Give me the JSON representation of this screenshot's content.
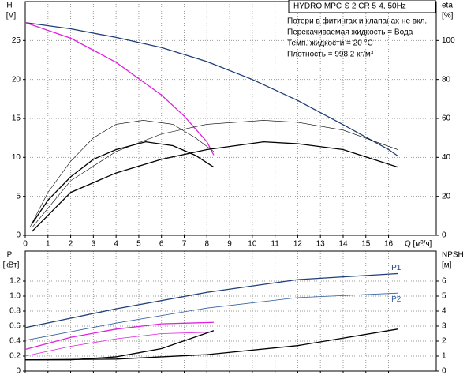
{
  "chart_data": [
    {
      "type": "line",
      "title": "HYDRO MPC-S 2 CR 5-4, 50Hz",
      "annotations": [
        "Потери в фитингах и клапанах не вкл.",
        "Перекачиваемая жидкость = Вода",
        "Темп. жидкости = 20 °C",
        "Плотность = 998.2 кг/м³"
      ],
      "xlabel": "Q [м³/ч]",
      "ylabel": "H",
      "yunit": "[м]",
      "y2label": "eta",
      "y2unit": "[%]",
      "xlim": [
        0,
        18.1
      ],
      "xticks": [
        0,
        1,
        2,
        3,
        4,
        5,
        6,
        7,
        8,
        9,
        10,
        11,
        12,
        13,
        14,
        15,
        16
      ],
      "ylim": [
        0,
        30
      ],
      "yticks": [
        0,
        5,
        10,
        15,
        20,
        25
      ],
      "y2lim": [
        0,
        120
      ],
      "y2ticks": [
        0,
        20,
        40,
        60,
        80,
        100
      ],
      "grid": true,
      "series": [
        {
          "color": "#1f3f7a",
          "width": 1.3,
          "x": [
            0,
            2,
            4,
            6,
            8,
            10,
            12,
            14,
            16,
            16.4
          ],
          "values": [
            27.3,
            26.5,
            25.4,
            24.1,
            22.3,
            20.0,
            17.3,
            14.2,
            11.0,
            10.2
          ]
        },
        {
          "color": "#e020e0",
          "width": 1.3,
          "x": [
            0,
            2,
            4,
            6,
            7,
            8,
            8.3
          ],
          "values": [
            27.3,
            25.3,
            22.2,
            18.0,
            15.3,
            12.0,
            10.3
          ]
        },
        {
          "color": "#000000",
          "width": 0.6,
          "axis": "y2",
          "x": [
            0.2,
            1,
            2,
            3,
            4,
            5.2,
            6.5,
            7.5,
            8.3
          ],
          "values": [
            4,
            22,
            38,
            50,
            57,
            59,
            57,
            50,
            43
          ]
        },
        {
          "color": "#000000",
          "width": 1.3,
          "axis": "y2",
          "x": [
            0.3,
            1,
            2,
            3,
            4,
            5.3,
            6.5,
            7.5,
            8.3
          ],
          "values": [
            6,
            18,
            30,
            39,
            44,
            48,
            46,
            41,
            35
          ]
        },
        {
          "color": "#000000",
          "width": 0.6,
          "axis": "y2",
          "x": [
            0.3,
            2,
            4,
            6,
            8,
            10.5,
            12,
            14,
            16.4
          ],
          "values": [
            4,
            28,
            43,
            52,
            57,
            59,
            58,
            54,
            44
          ]
        },
        {
          "color": "#000000",
          "width": 1.3,
          "axis": "y2",
          "x": [
            0.3,
            2,
            4,
            6,
            8,
            10.5,
            12,
            14,
            16.4
          ],
          "values": [
            2,
            22,
            32,
            39,
            44,
            48,
            47,
            44,
            35
          ]
        }
      ]
    },
    {
      "type": "line",
      "ylabel": "P",
      "yunit": "[кВт]",
      "y2label": "NPSH",
      "y2unit": "[м]",
      "xlim": [
        0,
        18.1
      ],
      "xticks": [
        0,
        1,
        2,
        3,
        4,
        5,
        6,
        7,
        8,
        9,
        10,
        11,
        12,
        13,
        14,
        15,
        16
      ],
      "ylim": [
        0,
        1.6
      ],
      "yticks": [
        0,
        0.2,
        0.4,
        0.6,
        0.8,
        {
          "value": 1,
          "label": "1.0"
        },
        1.2
      ],
      "y2lim": [
        0,
        8
      ],
      "y2ticks": [
        0,
        1,
        2,
        3,
        4,
        5,
        6
      ],
      "grid": true,
      "series": [
        {
          "name": "P1",
          "color": "#1f3f7a",
          "width": 1.3,
          "x": [
            0,
            4,
            8,
            12,
            16.4
          ],
          "values": [
            0.58,
            0.83,
            1.05,
            1.22,
            1.3
          ]
        },
        {
          "name": "P2",
          "color": "#2f5f9f",
          "width": 0.8,
          "x": [
            0,
            4,
            8,
            12,
            16.4
          ],
          "values": [
            0.41,
            0.64,
            0.84,
            0.98,
            1.04
          ]
        },
        {
          "color": "#e020e0",
          "width": 1.3,
          "x": [
            0,
            2,
            4,
            6,
            8.3
          ],
          "values": [
            0.29,
            0.45,
            0.56,
            0.63,
            0.65
          ]
        },
        {
          "color": "#e020e0",
          "width": 0.8,
          "x": [
            0,
            2,
            4,
            6,
            8.3
          ],
          "values": [
            0.2,
            0.33,
            0.43,
            0.5,
            0.52
          ]
        },
        {
          "color": "#000000",
          "width": 1.3,
          "axis": "y2",
          "x": [
            0,
            2,
            4,
            6,
            8.3
          ],
          "values": [
            0.75,
            0.75,
            0.95,
            1.5,
            2.7
          ]
        },
        {
          "color": "#000000",
          "width": 1.3,
          "axis": "y2",
          "x": [
            0,
            4,
            8,
            12,
            16.4
          ],
          "values": [
            0.75,
            0.8,
            1.1,
            1.7,
            2.8
          ]
        }
      ]
    }
  ]
}
